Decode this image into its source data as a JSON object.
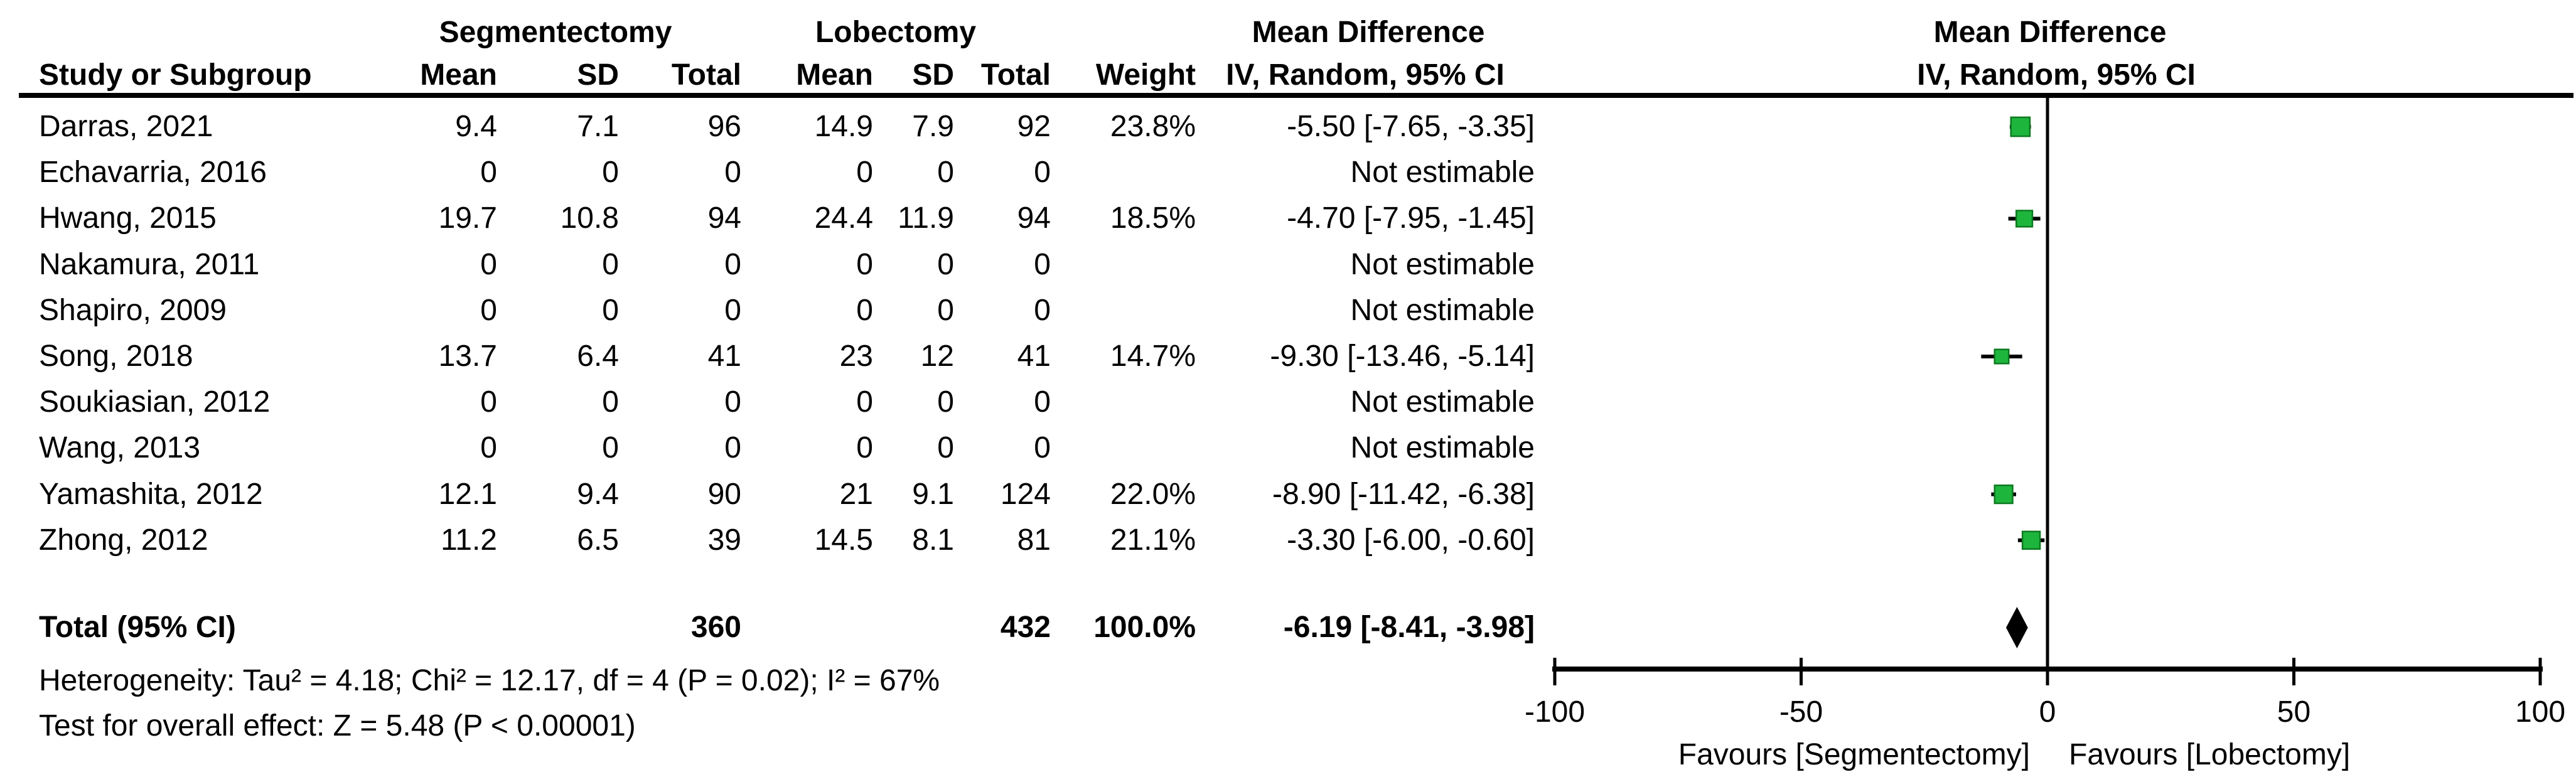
{
  "figure": {
    "table_headers": {
      "group1": "Segmentectomy",
      "group2": "Lobectomy",
      "effect_col_line1": "Mean Difference",
      "effect_col_line2": "IV, Random, 95% CI",
      "plot_col_line1": "Mean Difference",
      "plot_col_line2": "IV, Random, 95% CI",
      "columns": [
        "Study or Subgroup",
        "Mean",
        "SD",
        "Total",
        "Mean",
        "SD",
        "Total",
        "Weight",
        "IV, Random, 95% CI"
      ]
    },
    "footnotes": {
      "heterogeneity": "Heterogeneity: Tau² = 4.18; Chi² = 12.17, df = 4 (P = 0.02); I² = 67%",
      "overall_effect": "Test for overall effect: Z = 5.48 (P < 0.00001)"
    }
  },
  "chart_data": {
    "type": "forest",
    "effect_measure": "Mean Difference, IV, Random, 95% CI",
    "studies": [
      {
        "study": "Darras, 2021",
        "seg_mean": "9.4",
        "seg_sd": "7.1",
        "seg_total": "96",
        "lob_mean": "14.9",
        "lob_sd": "7.9",
        "lob_total": "92",
        "weight": "23.8%",
        "md_ci_text": "-5.50 [-7.65, -3.35]",
        "estimate": -5.5,
        "ci_low": -7.65,
        "ci_high": -3.35,
        "weight_pct": 23.8
      },
      {
        "study": "Echavarria, 2016",
        "seg_mean": "0",
        "seg_sd": "0",
        "seg_total": "0",
        "lob_mean": "0",
        "lob_sd": "0",
        "lob_total": "0",
        "weight": "",
        "md_ci_text": "Not estimable",
        "estimate": null,
        "ci_low": null,
        "ci_high": null,
        "weight_pct": null
      },
      {
        "study": "Hwang, 2015",
        "seg_mean": "19.7",
        "seg_sd": "10.8",
        "seg_total": "94",
        "lob_mean": "24.4",
        "lob_sd": "11.9",
        "lob_total": "94",
        "weight": "18.5%",
        "md_ci_text": "-4.70 [-7.95, -1.45]",
        "estimate": -4.7,
        "ci_low": -7.95,
        "ci_high": -1.45,
        "weight_pct": 18.5
      },
      {
        "study": "Nakamura, 2011",
        "seg_mean": "0",
        "seg_sd": "0",
        "seg_total": "0",
        "lob_mean": "0",
        "lob_sd": "0",
        "lob_total": "0",
        "weight": "",
        "md_ci_text": "Not estimable",
        "estimate": null,
        "ci_low": null,
        "ci_high": null,
        "weight_pct": null
      },
      {
        "study": "Shapiro, 2009",
        "seg_mean": "0",
        "seg_sd": "0",
        "seg_total": "0",
        "lob_mean": "0",
        "lob_sd": "0",
        "lob_total": "0",
        "weight": "",
        "md_ci_text": "Not estimable",
        "estimate": null,
        "ci_low": null,
        "ci_high": null,
        "weight_pct": null
      },
      {
        "study": "Song, 2018",
        "seg_mean": "13.7",
        "seg_sd": "6.4",
        "seg_total": "41",
        "lob_mean": "23",
        "lob_sd": "12",
        "lob_total": "41",
        "weight": "14.7%",
        "md_ci_text": "-9.30 [-13.46, -5.14]",
        "estimate": -9.3,
        "ci_low": -13.46,
        "ci_high": -5.14,
        "weight_pct": 14.7
      },
      {
        "study": "Soukiasian, 2012",
        "seg_mean": "0",
        "seg_sd": "0",
        "seg_total": "0",
        "lob_mean": "0",
        "lob_sd": "0",
        "lob_total": "0",
        "weight": "",
        "md_ci_text": "Not estimable",
        "estimate": null,
        "ci_low": null,
        "ci_high": null,
        "weight_pct": null
      },
      {
        "study": "Wang, 2013",
        "seg_mean": "0",
        "seg_sd": "0",
        "seg_total": "0",
        "lob_mean": "0",
        "lob_sd": "0",
        "lob_total": "0",
        "weight": "",
        "md_ci_text": "Not estimable",
        "estimate": null,
        "ci_low": null,
        "ci_high": null,
        "weight_pct": null
      },
      {
        "study": "Yamashita, 2012",
        "seg_mean": "12.1",
        "seg_sd": "9.4",
        "seg_total": "90",
        "lob_mean": "21",
        "lob_sd": "9.1",
        "lob_total": "124",
        "weight": "22.0%",
        "md_ci_text": "-8.90 [-11.42, -6.38]",
        "estimate": -8.9,
        "ci_low": -11.42,
        "ci_high": -6.38,
        "weight_pct": 22.0
      },
      {
        "study": "Zhong, 2012",
        "seg_mean": "11.2",
        "seg_sd": "6.5",
        "seg_total": "39",
        "lob_mean": "14.5",
        "lob_sd": "8.1",
        "lob_total": "81",
        "weight": "21.1%",
        "md_ci_text": "-3.30 [-6.00, -0.60]",
        "estimate": -3.3,
        "ci_low": -6.0,
        "ci_high": -0.6,
        "weight_pct": 21.1
      }
    ],
    "total": {
      "label": "Total (95% CI)",
      "seg_total": "360",
      "lob_total": "432",
      "weight": "100.0%",
      "md_ci_text": "-6.19 [-8.41, -3.98]",
      "estimate": -6.19,
      "ci_low": -8.41,
      "ci_high": -3.98
    },
    "x_axis": {
      "min": -100,
      "max": 100,
      "ticks": [
        -100,
        -50,
        0,
        50,
        100
      ],
      "favours_left": "Favours [Segmentectomy]",
      "favours_right": "Favours [Lobectomy]"
    },
    "colors": {
      "marker_fill": "#1EB53C",
      "marker_stroke": "#0C7A20",
      "diamond": "#000000",
      "line": "#000000"
    }
  }
}
